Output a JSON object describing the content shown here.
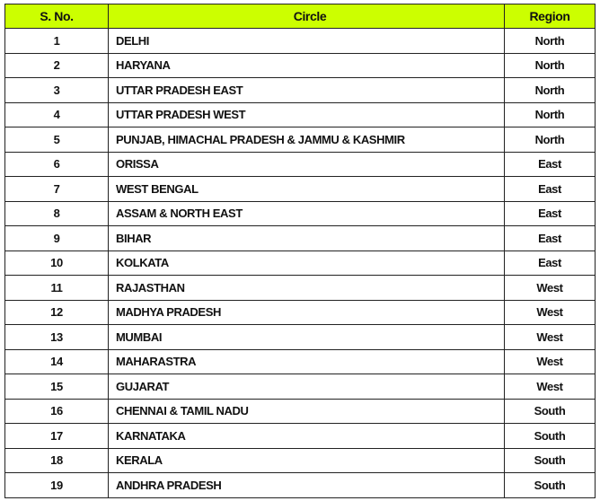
{
  "header": {
    "sno": "S. No.",
    "circle": "Circle",
    "region": "Region"
  },
  "header_color": "#ccff00",
  "rows": [
    {
      "sno": "1",
      "circle": "DELHI",
      "region": "North"
    },
    {
      "sno": "2",
      "circle": "HARYANA",
      "region": "North"
    },
    {
      "sno": "3",
      "circle": "UTTAR PRADESH EAST",
      "region": "North"
    },
    {
      "sno": "4",
      "circle": "UTTAR PRADESH WEST",
      "region": "North"
    },
    {
      "sno": "5",
      "circle": "PUNJAB, HIMACHAL PRADESH & JAMMU & KASHMIR",
      "region": "North"
    },
    {
      "sno": "6",
      "circle": "ORISSA",
      "region": "East"
    },
    {
      "sno": "7",
      "circle": "WEST BENGAL",
      "region": "East"
    },
    {
      "sno": "8",
      "circle": "ASSAM & NORTH EAST",
      "region": "East"
    },
    {
      "sno": "9",
      "circle": "BIHAR",
      "region": "East"
    },
    {
      "sno": "10",
      "circle": "KOLKATA",
      "region": "East"
    },
    {
      "sno": "11",
      "circle": "RAJASTHAN",
      "region": "West"
    },
    {
      "sno": "12",
      "circle": "MADHYA PRADESH",
      "region": "West"
    },
    {
      "sno": "13",
      "circle": "MUMBAI",
      "region": "West"
    },
    {
      "sno": "14",
      "circle": "MAHARASTRA",
      "region": "West"
    },
    {
      "sno": "15",
      "circle": "GUJARAT",
      "region": "West"
    },
    {
      "sno": "16",
      "circle": "CHENNAI & TAMIL NADU",
      "region": "South"
    },
    {
      "sno": "17",
      "circle": "KARNATAKA",
      "region": "South"
    },
    {
      "sno": "18",
      "circle": "KERALA",
      "region": "South"
    },
    {
      "sno": "19",
      "circle": "ANDHRA PRADESH",
      "region": "South"
    }
  ]
}
